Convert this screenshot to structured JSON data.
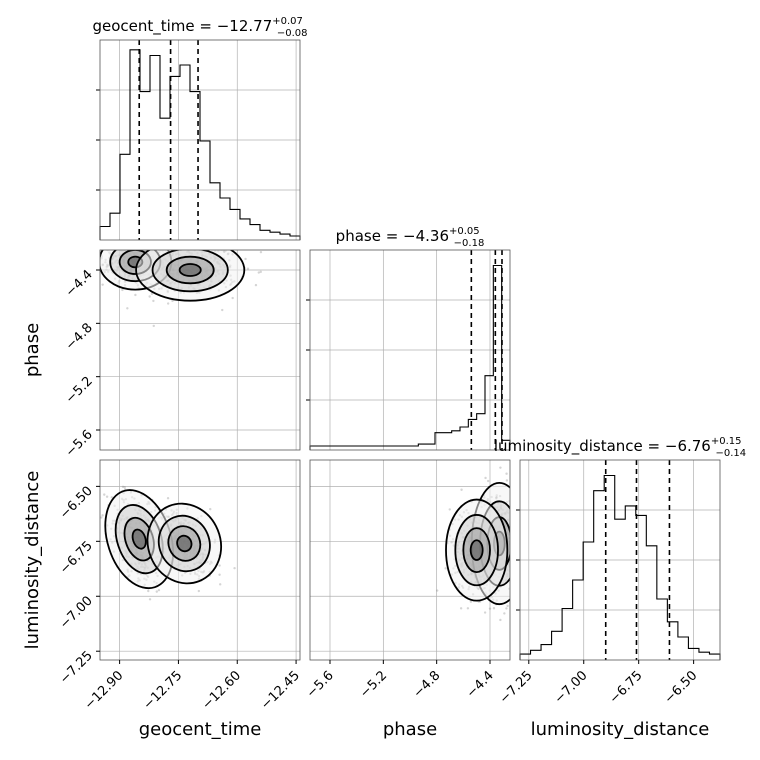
{
  "chart_data": {
    "type": "corner",
    "parameters": [
      {
        "name": "geocent_time",
        "title": "geocent_time = −12.77",
        "title_sup": "+0.07",
        "title_sub": "−0.08",
        "median": -12.77,
        "q_low": -12.85,
        "q_high": -12.7,
        "range": [
          -12.95,
          -12.44
        ],
        "ticks": [
          -12.9,
          -12.75,
          -12.6,
          -12.45
        ],
        "tick_labels": [
          "−12.90",
          "−12.75",
          "−12.60",
          "−12.45"
        ],
        "hist": [
          0.05,
          0.12,
          0.43,
          0.98,
          0.76,
          0.95,
          0.62,
          0.84,
          0.9,
          0.76,
          0.5,
          0.28,
          0.2,
          0.14,
          0.09,
          0.06,
          0.03,
          0.02,
          0.01,
          0.0
        ]
      },
      {
        "name": "phase",
        "title": "phase = −4.36",
        "title_sup": "+0.05",
        "title_sub": "−0.18",
        "median": -4.36,
        "q_low": -4.54,
        "q_high": -4.31,
        "range": [
          -5.75,
          -4.25
        ],
        "ticks": [
          -5.6,
          -5.2,
          -4.8,
          -4.4
        ],
        "tick_labels": [
          "−5.6",
          "−5.2",
          "−4.8",
          "−4.4"
        ],
        "y_tick_labels": [
          "−4.4",
          "−4.8",
          "−5.2",
          "−5.6"
        ],
        "hist": [
          0,
          0,
          0,
          0,
          0,
          0,
          0,
          0,
          0,
          0,
          0,
          0,
          0,
          0.01,
          0.01,
          0.07,
          0.07,
          0.08,
          0.1,
          0.14,
          0.17,
          0.37,
          0.95,
          0.03
        ]
      },
      {
        "name": "luminosity_distance",
        "title": "luminosity_distance = −6.76",
        "title_sup": "+0.15",
        "title_sub": "−0.14",
        "median": -6.76,
        "q_low": -6.9,
        "q_high": -6.61,
        "range": [
          -7.29,
          -6.38
        ],
        "ticks": [
          -7.25,
          -7.0,
          -6.75,
          -6.5
        ],
        "tick_labels": [
          "−7.25",
          "−7.00",
          "−6.75",
          "−6.50"
        ],
        "y_tick_labels": [
          "−6.50",
          "−6.75",
          "−7.00",
          "−7.25"
        ],
        "hist": [
          0.01,
          0.03,
          0.06,
          0.13,
          0.25,
          0.4,
          0.6,
          0.87,
          0.95,
          0.72,
          0.79,
          0.74,
          0.58,
          0.3,
          0.18,
          0.1,
          0.04,
          0.02,
          0.01
        ]
      }
    ],
    "xlabels": [
      "geocent_time",
      "phase",
      "luminosity_distance"
    ],
    "ylabels": [
      "phase",
      "luminosity_distance"
    ],
    "grid": true,
    "contour_levels": 4
  }
}
